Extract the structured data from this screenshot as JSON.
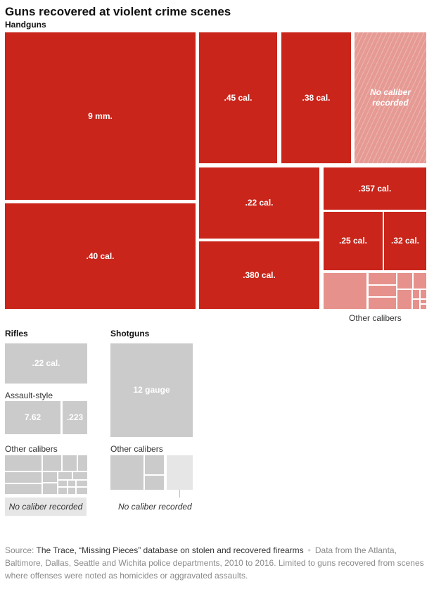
{
  "title": "Guns recovered at violent crime scenes",
  "colors": {
    "handgun_fill": "#c9251b",
    "handgun_other": "#e6918c",
    "no_caliber_hatch": "#e69a94",
    "rifle_shotgun_fill": "#cbcbcb",
    "no_caliber_gray": "#e6e6e6"
  },
  "chart_data": {
    "type": "treemap",
    "groups": [
      {
        "name": "Handguns",
        "items": [
          {
            "label": "9 mm."
          },
          {
            "label": ".40 cal."
          },
          {
            "label": ".45 cal."
          },
          {
            "label": ".38 cal."
          },
          {
            "label": "No caliber recorded"
          },
          {
            "label": ".22 cal."
          },
          {
            "label": ".380 cal."
          },
          {
            "label": ".357 cal."
          },
          {
            "label": ".25 cal."
          },
          {
            "label": ".32 cal."
          },
          {
            "label": "Other calibers"
          }
        ]
      },
      {
        "name": "Rifles",
        "items": [
          {
            "label": ".22 cal."
          },
          {
            "label": "Assault-style",
            "children": [
              {
                "label": "7.62"
              },
              {
                "label": ".223"
              }
            ]
          },
          {
            "label": "Other calibers"
          },
          {
            "label": "No caliber recorded"
          }
        ]
      },
      {
        "name": "Shotguns",
        "items": [
          {
            "label": "12 gauge"
          },
          {
            "label": "Other calibers"
          },
          {
            "label": "No caliber recorded"
          }
        ]
      }
    ]
  },
  "source": {
    "prefix": "Source: ",
    "name": "The Trace, “Missing Pieces” database on stolen and recovered firearms",
    "separator": "•",
    "note": "Data from the Atlanta, Baltimore, Dallas, Seattle and Wichita police departments, 2010 to 2016. Limited to guns recovered from scenes where offenses were noted as homicides or aggravated assaults."
  }
}
